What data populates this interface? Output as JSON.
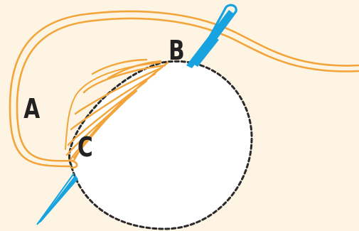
{
  "colors": {
    "background": "#fdf4e3",
    "thread": "#f2a53a",
    "needle": "#16a3e0",
    "outline": "#2a2a2a",
    "label": "#222222"
  },
  "labels": {
    "a": "A",
    "b": "B",
    "c": "C"
  },
  "icons": {
    "needle": "needle-icon",
    "thread": "thread-icon"
  }
}
